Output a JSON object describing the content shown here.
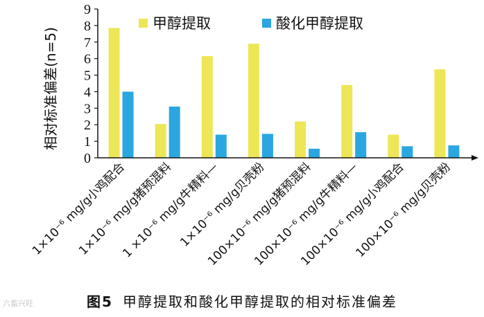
{
  "chart_data": {
    "type": "bar",
    "ylabel": "相对标准偏差(n=5)",
    "ylim": [
      0,
      9
    ],
    "yticks": [
      "0",
      "1",
      "2",
      "3",
      "4",
      "5",
      "6",
      "7",
      "8",
      "9"
    ],
    "categories": [
      "1×10⁻⁶ mg/g小鸡配合",
      "1×10⁻⁶ mg/g猪预混料",
      "1 ×10⁻⁶ mg/g牛精料—",
      "1×10⁻⁶ mg/g贝壳粉",
      "100×10⁻⁶ mg/g猪预混料",
      "100×10⁻⁶ mg/g牛精料—",
      "100×10⁻⁶ mg/g小鸡配合",
      "100×10⁻⁶ mg/g贝壳粉"
    ],
    "series": [
      {
        "name": "甲醇提取",
        "color": "#ede657",
        "values": [
          7.85,
          2.05,
          6.15,
          6.9,
          2.2,
          4.4,
          1.4,
          5.35
        ]
      },
      {
        "name": "酸化甲醇提取",
        "color": "#2aa7e0",
        "values": [
          4.0,
          3.1,
          1.4,
          1.45,
          0.55,
          1.55,
          0.7,
          0.75
        ]
      }
    ],
    "legend_position": "top"
  },
  "caption": {
    "number": "图5",
    "text": "甲醇提取和酸化甲醇提取的相对标准偏差"
  },
  "watermark": "六畜兴旺"
}
